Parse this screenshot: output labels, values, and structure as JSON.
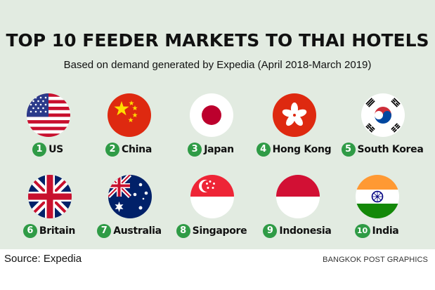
{
  "title": "TOP 10 FEEDER MARKETS TO THAI HOTELS",
  "subtitle": "Based on demand generated by Expedia (April 2018-March 2019)",
  "markets": [
    {
      "rank": "1",
      "name": "US",
      "flag_icon": "us-flag-icon"
    },
    {
      "rank": "2",
      "name": "China",
      "flag_icon": "china-flag-icon"
    },
    {
      "rank": "3",
      "name": "Japan",
      "flag_icon": "japan-flag-icon"
    },
    {
      "rank": "4",
      "name": "Hong Kong",
      "flag_icon": "hong-kong-flag-icon"
    },
    {
      "rank": "5",
      "name": "South Korea",
      "flag_icon": "south-korea-flag-icon"
    },
    {
      "rank": "6",
      "name": "Britain",
      "flag_icon": "britain-flag-icon"
    },
    {
      "rank": "7",
      "name": "Australia",
      "flag_icon": "australia-flag-icon"
    },
    {
      "rank": "8",
      "name": "Singapore",
      "flag_icon": "singapore-flag-icon"
    },
    {
      "rank": "9",
      "name": "Indonesia",
      "flag_icon": "indonesia-flag-icon"
    },
    {
      "rank": "10",
      "name": "India",
      "flag_icon": "india-flag-icon"
    }
  ],
  "source": "Source: Expedia",
  "credit": "BANGKOK POST GRAPHICS",
  "colors": {
    "panel": "#e2ebe1",
    "rank_badge": "#2f9b46"
  }
}
